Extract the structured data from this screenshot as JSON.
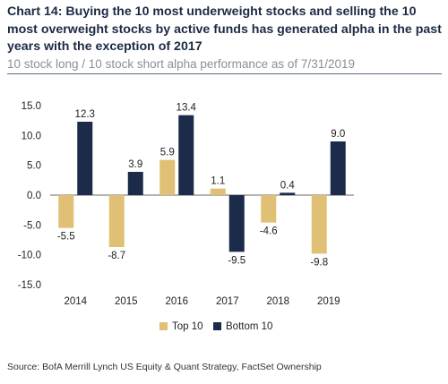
{
  "title": "Chart 14: Buying the 10 most underweight stocks and selling the 10 most overweight stocks by active funds has generated alpha in the past years with the exception of 2017",
  "subtitle": "10 stock long / 10 stock short alpha performance as of 7/31/2019",
  "source": "Source: BofA Merrill Lynch US Equity & Quant Strategy, FactSet Ownership",
  "chart_data": {
    "type": "bar",
    "categories": [
      "2014",
      "2015",
      "2016",
      "2017",
      "2018",
      "2019"
    ],
    "series": [
      {
        "name": "Top 10",
        "color": "#e0c074",
        "values": [
          -5.5,
          -8.7,
          5.9,
          1.1,
          -4.6,
          -9.8
        ]
      },
      {
        "name": "Bottom 10",
        "color": "#1c2b4a",
        "values": [
          12.3,
          3.9,
          13.4,
          -9.5,
          0.4,
          9.0
        ]
      }
    ],
    "ylim": [
      -15,
      15
    ],
    "yticks": [
      "15.0",
      "10.0",
      "5.0",
      "0.0",
      "-5.0",
      "-10.0",
      "-15.0"
    ],
    "grid": false,
    "legend": "bottom-center"
  }
}
